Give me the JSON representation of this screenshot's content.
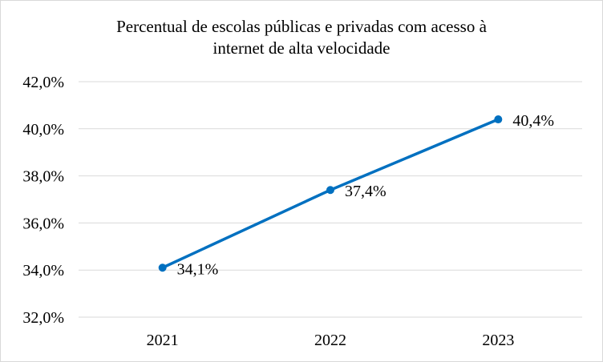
{
  "chart_data": {
    "type": "line",
    "title_lines": [
      "Percentual de escolas públicas e privadas com acesso à",
      "internet de alta velocidade"
    ],
    "categories": [
      "2021",
      "2022",
      "2023"
    ],
    "series": [
      {
        "values": [
          34.1,
          37.4,
          40.4
        ],
        "color": "#0070c0"
      }
    ],
    "data_labels": [
      "34,1%",
      "37,4%",
      "40,4%"
    ],
    "y_ticks": [
      "32,0%",
      "34,0%",
      "36,0%",
      "38,0%",
      "40,0%",
      "42,0%"
    ],
    "ylim": [
      32,
      42
    ],
    "y_step": 2,
    "grid": true,
    "legend": "none"
  }
}
